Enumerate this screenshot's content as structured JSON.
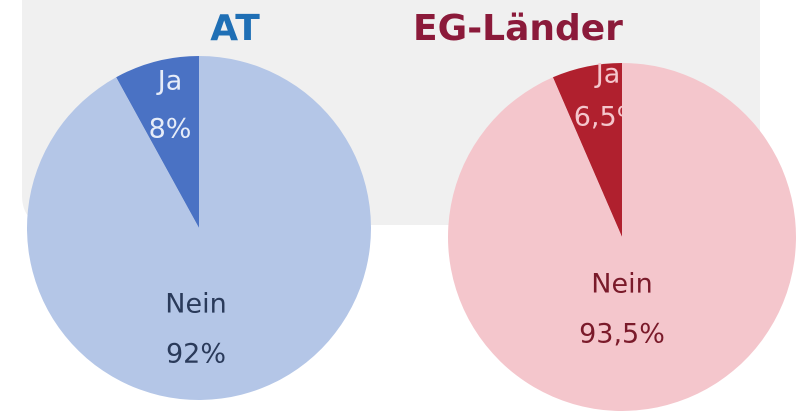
{
  "chart_data": [
    {
      "type": "pie",
      "title": "AT",
      "title_color": "#1f6fb5",
      "categories": [
        "Ja",
        "Nein"
      ],
      "values": [
        8,
        92
      ],
      "value_labels": [
        "8%",
        "92%"
      ],
      "colors": [
        "#4a72c4",
        "#b4c6e7"
      ],
      "label_colors": [
        "#e6ecf8",
        "#2a3a5a"
      ]
    },
    {
      "type": "pie",
      "title": "EG-Länder",
      "title_color": "#8b1a3a",
      "categories": [
        "Ja",
        "Nein"
      ],
      "values": [
        6.5,
        93.5
      ],
      "value_labels": [
        "6,5%",
        "93,5%"
      ],
      "colors": [
        "#b0202e",
        "#f4c6cc"
      ],
      "label_colors": [
        "#f4c6cc",
        "#7a1a2a"
      ]
    }
  ]
}
